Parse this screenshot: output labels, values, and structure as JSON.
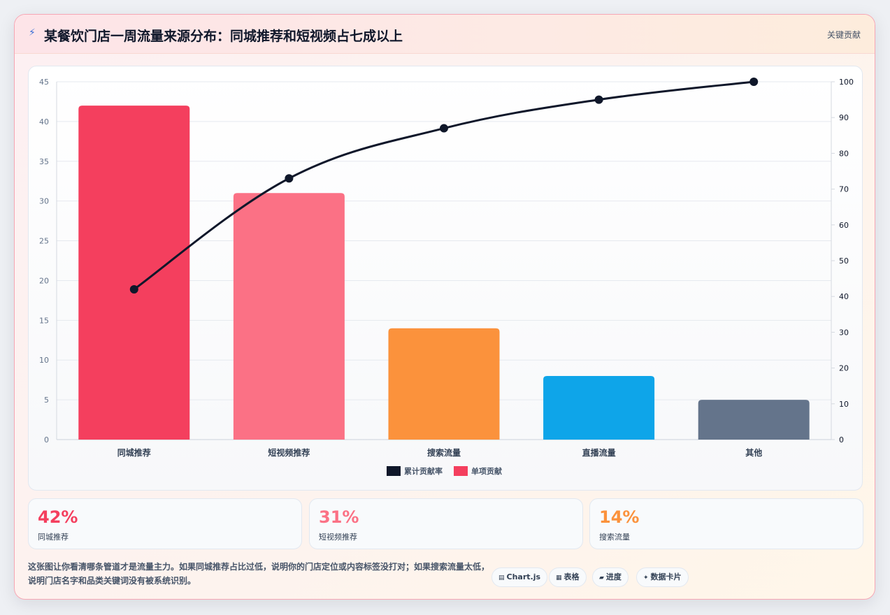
{
  "header": {
    "icon": "lightning-icon",
    "title": "某餐饮门店一周流量来源分布：同城推荐和短视频占七成以上",
    "right_label": "关键贡献"
  },
  "chart_data": {
    "type": "bar",
    "categories": [
      "同城推荐",
      "短视频推荐",
      "搜索流量",
      "直播流量",
      "其他"
    ],
    "series": [
      {
        "name": "累计贡献率",
        "type": "line",
        "axis": "right",
        "values": [
          42,
          73,
          87,
          95,
          100
        ],
        "color": "#0f172a"
      },
      {
        "name": "单项贡献",
        "type": "bar",
        "axis": "left",
        "values": [
          42,
          31,
          14,
          8,
          5
        ],
        "color": "#f43f5e"
      }
    ],
    "bar_colors": [
      "#f43f5e",
      "#fb7185",
      "#fb923c",
      "#0ea5e9",
      "#64748b"
    ],
    "y_left": {
      "min": 0,
      "max": 45,
      "step": 5
    },
    "y_right": {
      "min": 0,
      "max": 100,
      "step": 10
    },
    "grid": true,
    "legend_position": "bottom"
  },
  "kpis": [
    {
      "value": "42%",
      "label": "同城推荐",
      "color": "#f43f5e"
    },
    {
      "value": "31%",
      "label": "短视频推荐",
      "color": "#fb7185"
    },
    {
      "value": "14%",
      "label": "搜索流量",
      "color": "#fb923c"
    }
  ],
  "footnote": "这张图让你看清哪条管道才是流量主力。如果同城推荐占比过低，说明你的门店定位或内容标签没打对；如果搜索流量太低，说明门店名字和品类关键词没有被系统识别。",
  "tags": [
    {
      "icon": "chart-icon",
      "glyph": "▤",
      "label": "Chart.js"
    },
    {
      "icon": "table-icon",
      "glyph": "▦",
      "label": "表格"
    },
    {
      "icon": "progress-icon",
      "glyph": "▰",
      "label": "进度"
    },
    {
      "icon": "sparkle-icon",
      "glyph": "✦",
      "label": "数据卡片"
    }
  ]
}
